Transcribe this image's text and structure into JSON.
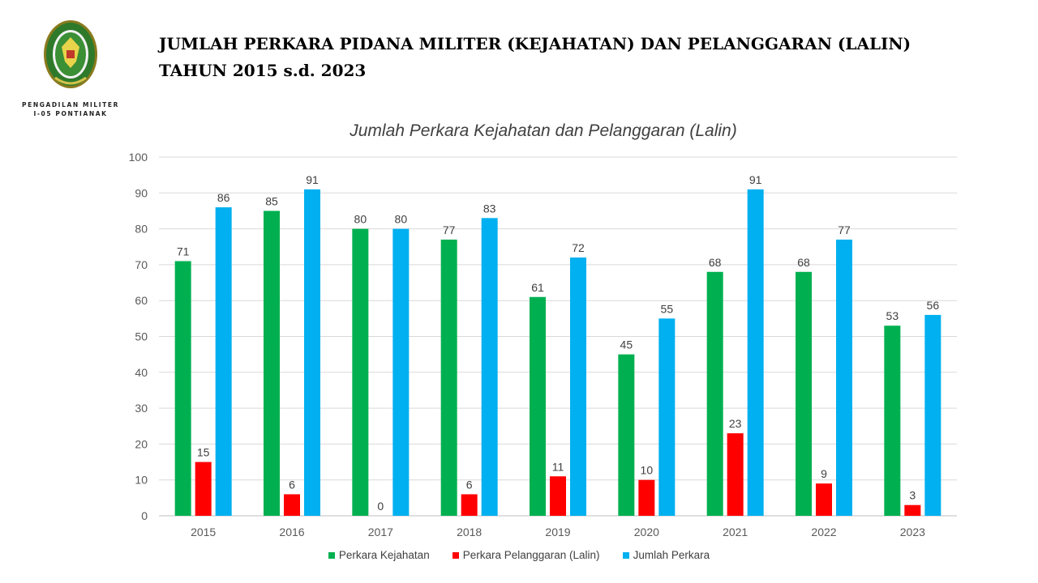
{
  "header": {
    "title_line1": "JUMLAH PERKARA PIDANA MILITER (KEJAHATAN) DAN PELANGGARAN (LALIN)",
    "title_line2": "TAHUN 2015 s.d. 2023",
    "org_line1": "PENGADILAN MILITER",
    "org_line2": "I-05 PONTIANAK",
    "logo_icon": "court-emblem-icon"
  },
  "chart_data": {
    "type": "bar",
    "title": "Jumlah Perkara Kejahatan dan Pelanggaran (Lalin)",
    "xlabel": "",
    "ylabel": "",
    "categories": [
      "2015",
      "2016",
      "2017",
      "2018",
      "2019",
      "2020",
      "2021",
      "2022",
      "2023"
    ],
    "ylim": [
      0,
      100
    ],
    "yticks": [
      0,
      10,
      20,
      30,
      40,
      50,
      60,
      70,
      80,
      90,
      100
    ],
    "grid": true,
    "legend_position": "bottom",
    "series": [
      {
        "name": "Perkara Kejahatan",
        "color": "#00b050",
        "values": [
          71,
          85,
          80,
          77,
          61,
          45,
          68,
          68,
          53
        ]
      },
      {
        "name": "Perkara Pelanggaran (Lalin)",
        "color": "#ff0000",
        "values": [
          15,
          6,
          0,
          6,
          11,
          10,
          23,
          9,
          3
        ]
      },
      {
        "name": "Jumlah Perkara",
        "color": "#00b0f0",
        "values": [
          86,
          91,
          80,
          83,
          72,
          55,
          91,
          77,
          56
        ]
      }
    ]
  }
}
